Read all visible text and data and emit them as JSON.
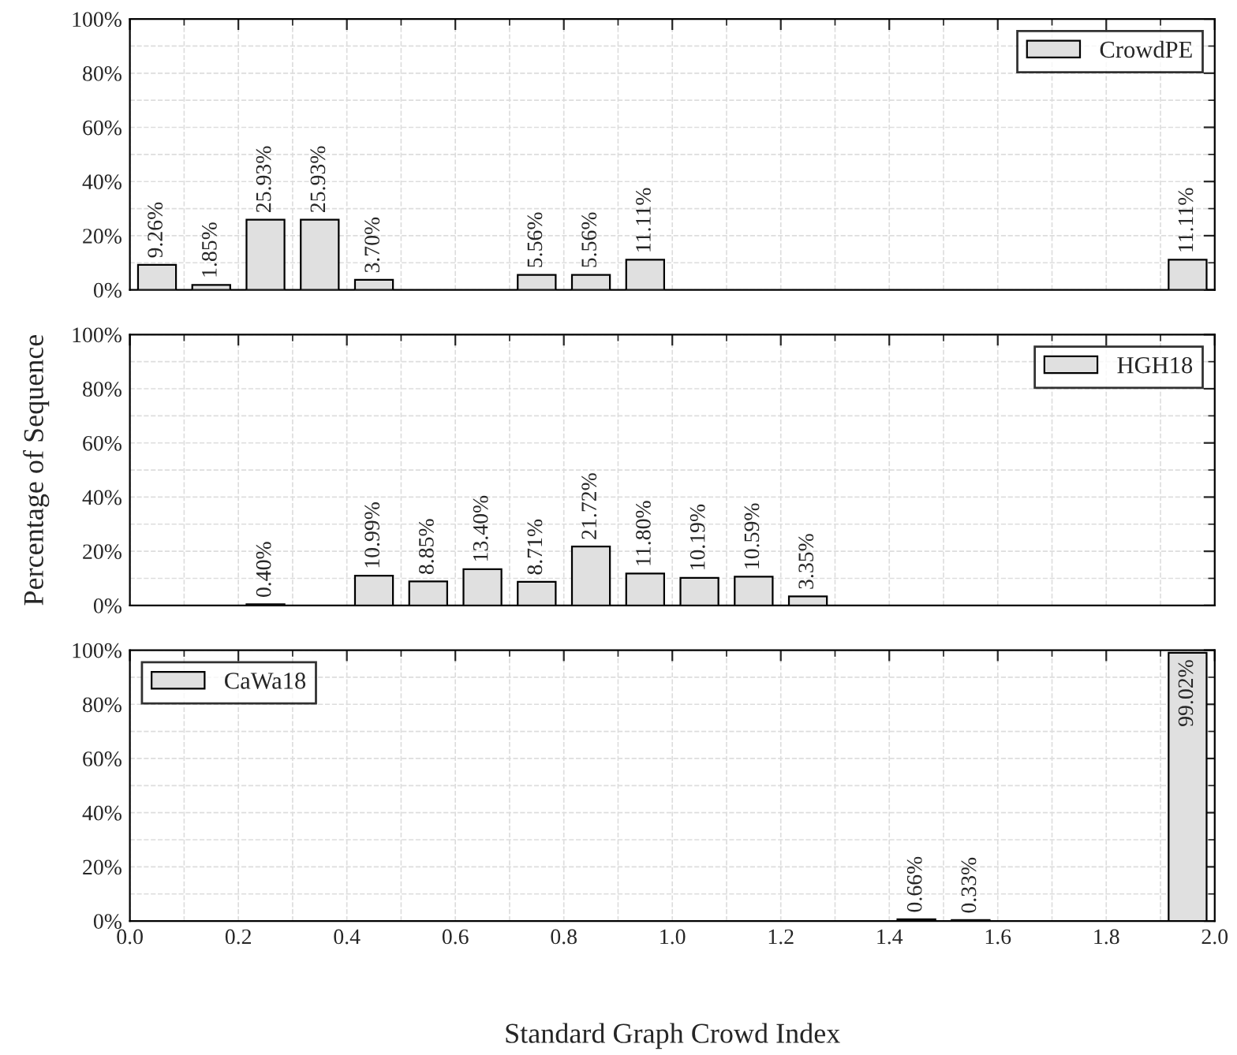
{
  "chart_data": [
    {
      "type": "bar",
      "x": [
        0.05,
        0.15,
        0.25,
        0.35,
        0.45,
        0.75,
        0.85,
        0.95,
        1.95
      ],
      "series": [
        {
          "name": "CrowdPE",
          "color": "#e0e0e0",
          "values": [
            9.26,
            1.85,
            25.93,
            25.93,
            3.7,
            5.56,
            5.56,
            11.11,
            11.11
          ],
          "value_labels": [
            "9.26%",
            "1.85%",
            "25.93%",
            "25.93%",
            "3.70%",
            "5.56%",
            "5.56%",
            "11.11%",
            "11.11%"
          ]
        }
      ],
      "xlim": [
        0,
        2
      ],
      "xticks": [
        {
          "value": 0,
          "label": null
        },
        {
          "value": 0.2,
          "label": null
        },
        {
          "value": 0.4,
          "label": null
        },
        {
          "value": 0.6,
          "label": null
        },
        {
          "value": 0.8,
          "label": null
        },
        {
          "value": 1.0,
          "label": null
        },
        {
          "value": 1.2,
          "label": null
        },
        {
          "value": 1.4,
          "label": null
        },
        {
          "value": 1.6,
          "label": null
        },
        {
          "value": 1.8,
          "label": null
        },
        {
          "value": 2.0,
          "label": null
        }
      ],
      "ylim": [
        0,
        100
      ],
      "yticks": [
        {
          "value": 0,
          "label": "0%"
        },
        {
          "value": 20,
          "label": "20%"
        },
        {
          "value": 40,
          "label": "40%"
        },
        {
          "value": 60,
          "label": "60%"
        },
        {
          "value": 80,
          "label": "80%"
        },
        {
          "value": 100,
          "label": "100%"
        }
      ],
      "tick_labels": "y",
      "grid": true,
      "legend": "top right"
    },
    {
      "type": "bar",
      "x": [
        0.25,
        0.45,
        0.55,
        0.65,
        0.75,
        0.85,
        0.95,
        1.05,
        1.15,
        1.25
      ],
      "series": [
        {
          "name": "HGH18",
          "color": "#e0e0e0",
          "values": [
            0.4,
            10.99,
            8.85,
            13.4,
            8.71,
            21.72,
            11.8,
            10.19,
            10.59,
            3.35
          ],
          "value_labels": [
            "0.40%",
            "10.99%",
            "8.85%",
            "13.40%",
            "8.71%",
            "21.72%",
            "11.80%",
            "10.19%",
            "10.59%",
            "3.35%"
          ]
        }
      ],
      "ylabel": "Percentage of Sequence",
      "xlim": [
        0,
        2
      ],
      "xticks": [
        {
          "value": 0,
          "label": null
        },
        {
          "value": 0.2,
          "label": null
        },
        {
          "value": 0.4,
          "label": null
        },
        {
          "value": 0.6,
          "label": null
        },
        {
          "value": 0.8,
          "label": null
        },
        {
          "value": 1.0,
          "label": null
        },
        {
          "value": 1.2,
          "label": null
        },
        {
          "value": 1.4,
          "label": null
        },
        {
          "value": 1.6,
          "label": null
        },
        {
          "value": 1.8,
          "label": null
        },
        {
          "value": 2.0,
          "label": null
        }
      ],
      "ylim": [
        0,
        100
      ],
      "yticks": [
        {
          "value": 0,
          "label": "0%"
        },
        {
          "value": 20,
          "label": "20%"
        },
        {
          "value": 40,
          "label": "40%"
        },
        {
          "value": 60,
          "label": "60%"
        },
        {
          "value": 80,
          "label": "80%"
        },
        {
          "value": 100,
          "label": "100%"
        }
      ],
      "tick_labels": "y",
      "grid": true,
      "legend": "top right"
    },
    {
      "type": "bar",
      "x": [
        1.45,
        1.55,
        1.95
      ],
      "series": [
        {
          "name": "CaWa18",
          "color": "#e0e0e0",
          "values": [
            0.66,
            0.33,
            99.02
          ],
          "value_labels": [
            "0.66%",
            "0.33%",
            "99.02%"
          ]
        }
      ],
      "xlabel": "Standard Graph Crowd Index",
      "xlim": [
        0,
        2
      ],
      "xticks": [
        {
          "value": 0,
          "label": "0.0"
        },
        {
          "value": 0.2,
          "label": "0.2"
        },
        {
          "value": 0.4,
          "label": "0.4"
        },
        {
          "value": 0.6,
          "label": "0.6"
        },
        {
          "value": 0.8,
          "label": "0.8"
        },
        {
          "value": 1.0,
          "label": "1.0"
        },
        {
          "value": 1.2,
          "label": "1.2"
        },
        {
          "value": 1.4,
          "label": "1.4"
        },
        {
          "value": 1.6,
          "label": "1.6"
        },
        {
          "value": 1.8,
          "label": "1.8"
        },
        {
          "value": 2.0,
          "label": "2.0"
        }
      ],
      "ylim": [
        0,
        100
      ],
      "yticks": [
        {
          "value": 0,
          "label": "0%"
        },
        {
          "value": 20,
          "label": "20%"
        },
        {
          "value": 40,
          "label": "40%"
        },
        {
          "value": 60,
          "label": "60%"
        },
        {
          "value": 80,
          "label": "80%"
        },
        {
          "value": 100,
          "label": "100%"
        }
      ],
      "grid": true,
      "legend": "top left"
    }
  ]
}
